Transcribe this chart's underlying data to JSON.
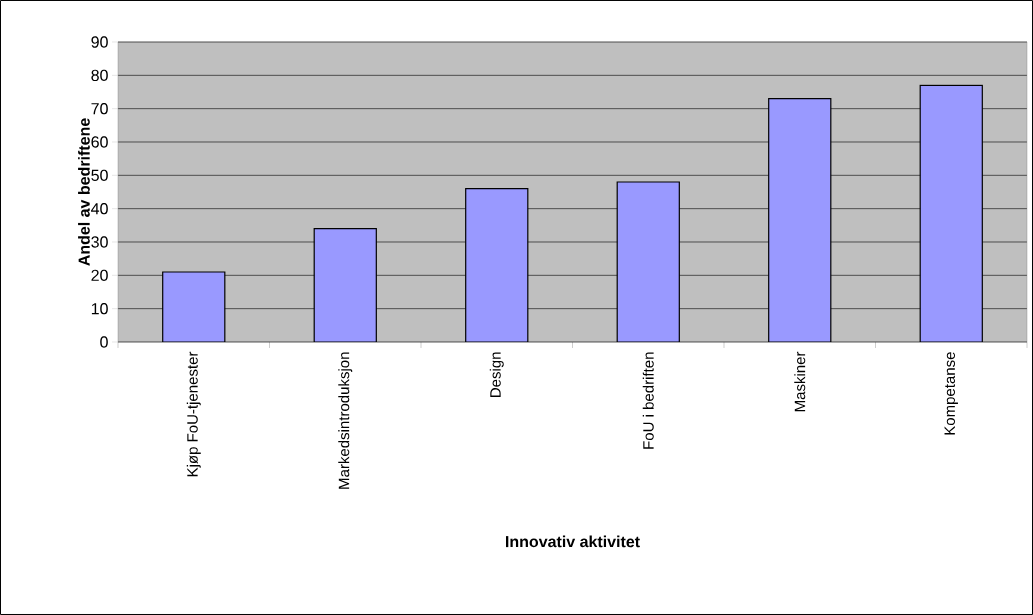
{
  "chart_data": {
    "type": "bar",
    "xlabel": "Innovativ aktivitet",
    "ylabel": "Andel av bedriftene",
    "categories": [
      "Kjøp FoU-tjenester",
      "Markedsintroduksjon",
      "Design",
      "FoU i bedriften",
      "Maskiner",
      "Kompetanse"
    ],
    "values": [
      21,
      34,
      46,
      48,
      73,
      77
    ],
    "color": "#9999ff",
    "ylim": [
      0,
      90
    ],
    "yticks": [
      0,
      10,
      20,
      30,
      40,
      50,
      60,
      70,
      80,
      90
    ],
    "grid": "y"
  }
}
